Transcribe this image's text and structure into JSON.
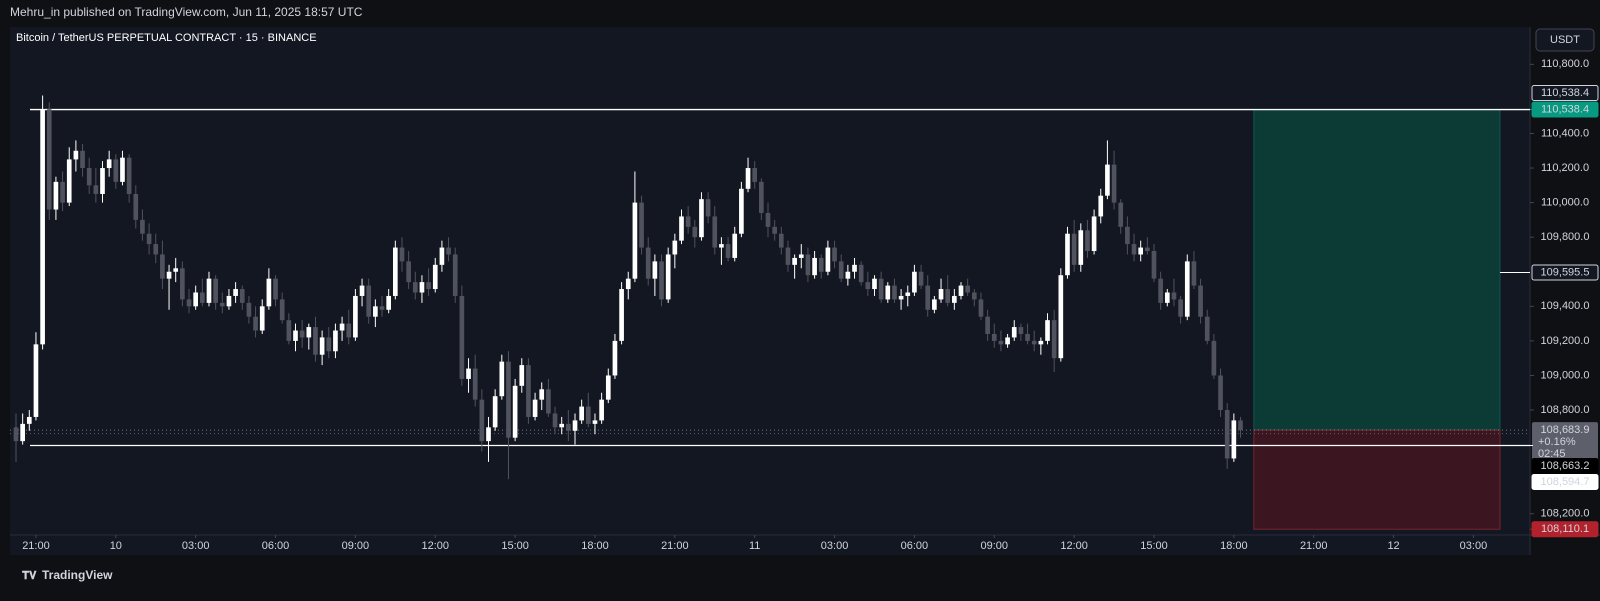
{
  "header": {
    "publisher": "Mehru_in published on TradingView.com, Jun 11, 2025 18:57 UTC",
    "brand": "TradingView"
  },
  "chart_data": {
    "type": "candlestick",
    "title": "Bitcoin / TetherUS PERPETUAL CONTRACT · 15 · BINANCE",
    "currency": "USDT",
    "up_color": "#ffffff",
    "down_color": "#50535e",
    "ylim": [
      108077,
      111016
    ],
    "yticks": [
      {
        "value": 108200,
        "label": "108,200.0"
      },
      {
        "value": 108800,
        "label": "108,800.0"
      },
      {
        "value": 109000,
        "label": "109,000.0"
      },
      {
        "value": 109200,
        "label": "109,200.0"
      },
      {
        "value": 109400,
        "label": "109,400.0"
      },
      {
        "value": 109800,
        "label": "109,800.0"
      },
      {
        "value": 110000,
        "label": "110,000.0"
      },
      {
        "value": 110200,
        "label": "110,200.0"
      },
      {
        "value": 110400,
        "label": "110,400.0"
      },
      {
        "value": 110800,
        "label": "110,800.0"
      }
    ],
    "xlim": [
      -0.9,
      227.5
    ],
    "xticks": [
      {
        "value": 3,
        "label": "21:00"
      },
      {
        "value": 15,
        "label": "10"
      },
      {
        "value": 27,
        "label": "03:00"
      },
      {
        "value": 39,
        "label": "06:00"
      },
      {
        "value": 51,
        "label": "09:00"
      },
      {
        "value": 63,
        "label": "12:00"
      },
      {
        "value": 75,
        "label": "15:00"
      },
      {
        "value": 87,
        "label": "18:00"
      },
      {
        "value": 99,
        "label": "21:00"
      },
      {
        "value": 111,
        "label": "11"
      },
      {
        "value": 123,
        "label": "03:00"
      },
      {
        "value": 135,
        "label": "06:00"
      },
      {
        "value": 147,
        "label": "09:00"
      },
      {
        "value": 159,
        "label": "12:00"
      },
      {
        "value": 171,
        "label": "15:00"
      },
      {
        "value": 183,
        "label": "18:00"
      },
      {
        "value": 195,
        "label": "21:00"
      },
      {
        "value": 207,
        "label": "12"
      },
      {
        "value": 219,
        "label": "03:00"
      }
    ],
    "candles": [
      [
        108700,
        108780,
        108500,
        108620
      ],
      [
        108620,
        108780,
        108600,
        108720
      ],
      [
        108720,
        108800,
        108680,
        108760
      ],
      [
        108760,
        109250,
        108740,
        109180
      ],
      [
        109180,
        110620,
        109150,
        110540
      ],
      [
        110540,
        110580,
        109900,
        109960
      ],
      [
        109960,
        110150,
        109900,
        110120
      ],
      [
        110120,
        110180,
        109950,
        110000
      ],
      [
        110000,
        110320,
        109980,
        110250
      ],
      [
        110250,
        110360,
        110180,
        110300
      ],
      [
        110300,
        110340,
        110150,
        110200
      ],
      [
        110200,
        110260,
        110050,
        110100
      ],
      [
        110100,
        110200,
        110000,
        110050
      ],
      [
        110050,
        110240,
        110000,
        110200
      ],
      [
        110200,
        110300,
        110150,
        110250
      ],
      [
        110250,
        110280,
        110080,
        110120
      ],
      [
        110120,
        110300,
        110100,
        110260
      ],
      [
        110260,
        110280,
        110000,
        110050
      ],
      [
        110050,
        110100,
        109850,
        109900
      ],
      [
        109900,
        109960,
        109780,
        109820
      ],
      [
        109820,
        109880,
        109700,
        109760
      ],
      [
        109760,
        109820,
        109650,
        109700
      ],
      [
        109700,
        109780,
        109500,
        109560
      ],
      [
        109560,
        109640,
        109380,
        109600
      ],
      [
        109600,
        109680,
        109540,
        109620
      ],
      [
        109620,
        109660,
        109400,
        109440
      ],
      [
        109440,
        109500,
        109360,
        109400
      ],
      [
        109400,
        109520,
        109380,
        109480
      ],
      [
        109480,
        109560,
        109400,
        109420
      ],
      [
        109420,
        109600,
        109400,
        109560
      ],
      [
        109560,
        109580,
        109380,
        109420
      ],
      [
        109420,
        109480,
        109360,
        109400
      ],
      [
        109400,
        109500,
        109380,
        109460
      ],
      [
        109460,
        109540,
        109420,
        109500
      ],
      [
        109500,
        109520,
        109380,
        109420
      ],
      [
        109420,
        109460,
        109300,
        109340
      ],
      [
        109340,
        109400,
        109220,
        109260
      ],
      [
        109260,
        109440,
        109240,
        109400
      ],
      [
        109400,
        109620,
        109380,
        109560
      ],
      [
        109560,
        109580,
        109400,
        109440
      ],
      [
        109440,
        109480,
        109300,
        109320
      ],
      [
        109320,
        109360,
        109180,
        109200
      ],
      [
        109200,
        109300,
        109140,
        109260
      ],
      [
        109260,
        109320,
        109160,
        109220
      ],
      [
        109220,
        109300,
        109150,
        109280
      ],
      [
        109280,
        109340,
        109080,
        109120
      ],
      [
        109120,
        109260,
        109060,
        109220
      ],
      [
        109220,
        109280,
        109100,
        109140
      ],
      [
        109140,
        109300,
        109100,
        109260
      ],
      [
        109260,
        109340,
        109200,
        109300
      ],
      [
        109300,
        109380,
        109180,
        109220
      ],
      [
        109220,
        109500,
        109200,
        109460
      ],
      [
        109460,
        109560,
        109400,
        109520
      ],
      [
        109520,
        109560,
        109300,
        109340
      ],
      [
        109340,
        109440,
        109280,
        109400
      ],
      [
        109400,
        109460,
        109340,
        109380
      ],
      [
        109380,
        109500,
        109360,
        109460
      ],
      [
        109460,
        109780,
        109440,
        109740
      ],
      [
        109740,
        109800,
        109600,
        109660
      ],
      [
        109660,
        109720,
        109500,
        109540
      ],
      [
        109540,
        109600,
        109440,
        109480
      ],
      [
        109480,
        109580,
        109420,
        109540
      ],
      [
        109540,
        109620,
        109460,
        109500
      ],
      [
        109500,
        109680,
        109480,
        109640
      ],
      [
        109640,
        109780,
        109600,
        109740
      ],
      [
        109740,
        109800,
        109660,
        109700
      ],
      [
        109700,
        109740,
        109420,
        109460
      ],
      [
        109460,
        109520,
        108940,
        108980
      ],
      [
        108980,
        109100,
        108900,
        109040
      ],
      [
        109040,
        109120,
        108820,
        108860
      ],
      [
        108860,
        108920,
        108560,
        108620
      ],
      [
        108620,
        108760,
        108500,
        108700
      ],
      [
        108700,
        108920,
        108680,
        108880
      ],
      [
        108880,
        109120,
        108860,
        109080
      ],
      [
        109080,
        109140,
        108400,
        108640
      ],
      [
        108640,
        108980,
        108620,
        108940
      ],
      [
        108940,
        109100,
        108900,
        109060
      ],
      [
        109060,
        109100,
        108720,
        108760
      ],
      [
        108760,
        108900,
        108740,
        108860
      ],
      [
        108860,
        108960,
        108800,
        108920
      ],
      [
        108920,
        108980,
        108760,
        108780
      ],
      [
        108780,
        108820,
        108660,
        108700
      ],
      [
        108700,
        108760,
        108660,
        108720
      ],
      [
        108720,
        108800,
        108620,
        108680
      ],
      [
        108680,
        108780,
        108600,
        108740
      ],
      [
        108740,
        108860,
        108720,
        108820
      ],
      [
        108820,
        108900,
        108700,
        108720
      ],
      [
        108720,
        108780,
        108660,
        108740
      ],
      [
        108740,
        108900,
        108720,
        108860
      ],
      [
        108860,
        109040,
        108840,
        109000
      ],
      [
        109000,
        109240,
        108980,
        109200
      ],
      [
        109200,
        109540,
        109180,
        109500
      ],
      [
        109500,
        109600,
        109440,
        109560
      ],
      [
        109560,
        110180,
        109540,
        110000
      ],
      [
        110000,
        110040,
        109700,
        109740
      ],
      [
        109740,
        109800,
        109520,
        109560
      ],
      [
        109560,
        109700,
        109460,
        109660
      ],
      [
        109660,
        109700,
        109400,
        109440
      ],
      [
        109440,
        109740,
        109420,
        109700
      ],
      [
        109700,
        109820,
        109620,
        109780
      ],
      [
        109780,
        109960,
        109760,
        109920
      ],
      [
        109920,
        109980,
        109820,
        109860
      ],
      [
        109860,
        109900,
        109740,
        109800
      ],
      [
        109800,
        110060,
        109780,
        110020
      ],
      [
        110020,
        110060,
        109880,
        109920
      ],
      [
        109920,
        109980,
        109700,
        109740
      ],
      [
        109740,
        109800,
        109640,
        109760
      ],
      [
        109760,
        109800,
        109660,
        109680
      ],
      [
        109680,
        109860,
        109660,
        109820
      ],
      [
        109820,
        110120,
        109800,
        110080
      ],
      [
        110080,
        110260,
        110060,
        110200
      ],
      [
        110200,
        110240,
        110080,
        110120
      ],
      [
        110120,
        110140,
        109900,
        109940
      ],
      [
        109940,
        110000,
        109800,
        109860
      ],
      [
        109860,
        109900,
        109780,
        109820
      ],
      [
        109820,
        109860,
        109700,
        109740
      ],
      [
        109740,
        109780,
        109600,
        109640
      ],
      [
        109640,
        109700,
        109560,
        109680
      ],
      [
        109680,
        109760,
        109620,
        109700
      ],
      [
        109700,
        109740,
        109540,
        109580
      ],
      [
        109580,
        109720,
        109560,
        109680
      ],
      [
        109680,
        109700,
        109560,
        109600
      ],
      [
        109600,
        109780,
        109580,
        109740
      ],
      [
        109740,
        109780,
        109620,
        109660
      ],
      [
        109660,
        109700,
        109540,
        109560
      ],
      [
        109560,
        109640,
        109520,
        109600
      ],
      [
        109600,
        109680,
        109560,
        109640
      ],
      [
        109640,
        109660,
        109520,
        109540
      ],
      [
        109540,
        109600,
        109460,
        109500
      ],
      [
        109500,
        109580,
        109460,
        109560
      ],
      [
        109560,
        109600,
        109420,
        109440
      ],
      [
        109440,
        109540,
        109420,
        109520
      ],
      [
        109520,
        109560,
        109420,
        109440
      ],
      [
        109440,
        109500,
        109380,
        109460
      ],
      [
        109460,
        109520,
        109400,
        109480
      ],
      [
        109480,
        109640,
        109460,
        109600
      ],
      [
        109600,
        109640,
        109500,
        109520
      ],
      [
        109520,
        109580,
        109340,
        109380
      ],
      [
        109380,
        109460,
        109360,
        109440
      ],
      [
        109440,
        109560,
        109420,
        109500
      ],
      [
        109500,
        109580,
        109400,
        109420
      ],
      [
        109420,
        109500,
        109380,
        109460
      ],
      [
        109460,
        109540,
        109440,
        109520
      ],
      [
        109520,
        109560,
        109460,
        109480
      ],
      [
        109480,
        109500,
        109400,
        109440
      ],
      [
        109440,
        109480,
        109320,
        109340
      ],
      [
        109340,
        109380,
        109200,
        109240
      ],
      [
        109240,
        109300,
        109160,
        109200
      ],
      [
        109200,
        109260,
        109140,
        109180
      ],
      [
        109180,
        109240,
        109160,
        109220
      ],
      [
        109220,
        109320,
        109200,
        109280
      ],
      [
        109280,
        109300,
        109200,
        109240
      ],
      [
        109240,
        109300,
        109180,
        109200
      ],
      [
        109200,
        109260,
        109140,
        109180
      ],
      [
        109180,
        109220,
        109120,
        109200
      ],
      [
        109200,
        109360,
        109180,
        109320
      ],
      [
        109320,
        109380,
        109020,
        109100
      ],
      [
        109100,
        109620,
        109080,
        109580
      ],
      [
        109580,
        109860,
        109560,
        109820
      ],
      [
        109820,
        109900,
        109600,
        109640
      ],
      [
        109640,
        109880,
        109600,
        109840
      ],
      [
        109840,
        109900,
        109680,
        109720
      ],
      [
        109720,
        109960,
        109700,
        109920
      ],
      [
        109920,
        110080,
        109880,
        110040
      ],
      [
        110040,
        110360,
        110020,
        110220
      ],
      [
        110220,
        110300,
        109960,
        110000
      ],
      [
        110000,
        110020,
        109820,
        109860
      ],
      [
        109860,
        109920,
        109700,
        109760
      ],
      [
        109760,
        109820,
        109660,
        109700
      ],
      [
        109700,
        109780,
        109660,
        109740
      ],
      [
        109740,
        109800,
        109700,
        109720
      ],
      [
        109720,
        109760,
        109540,
        109560
      ],
      [
        109560,
        109600,
        109380,
        109420
      ],
      [
        109420,
        109500,
        109400,
        109480
      ],
      [
        109480,
        109560,
        109400,
        109440
      ],
      [
        109440,
        109460,
        109300,
        109340
      ],
      [
        109340,
        109700,
        109320,
        109660
      ],
      [
        109660,
        109720,
        109500,
        109520
      ],
      [
        109520,
        109560,
        109300,
        109340
      ],
      [
        109340,
        109380,
        109180,
        109200
      ],
      [
        109200,
        109240,
        108980,
        109000
      ],
      [
        109000,
        109040,
        108760,
        108800
      ],
      [
        108800,
        108840,
        108460,
        108520
      ],
      [
        108520,
        108780,
        108500,
        108740
      ],
      [
        108740,
        108760,
        108640,
        108683.9
      ]
    ],
    "levels": [
      {
        "value": 110538.4,
        "label": "110,538.4"
      },
      {
        "value": 108594.7,
        "label": "108,594.7"
      }
    ],
    "position": {
      "start": 186,
      "end": 223,
      "entry": 108683.9,
      "target": {
        "value": 110538.4,
        "label": "110,538.4"
      },
      "stop": {
        "value": 108110.1,
        "label": "108,110.1"
      }
    },
    "marker": {
      "value": 109595.5,
      "label": "109,595.5"
    },
    "last_price": {
      "value": 108683.9,
      "label": "108,683.9",
      "change": "+0.16%",
      "countdown": "02:45"
    },
    "reference": {
      "value": 108663.2,
      "label": "108,663.2"
    }
  }
}
